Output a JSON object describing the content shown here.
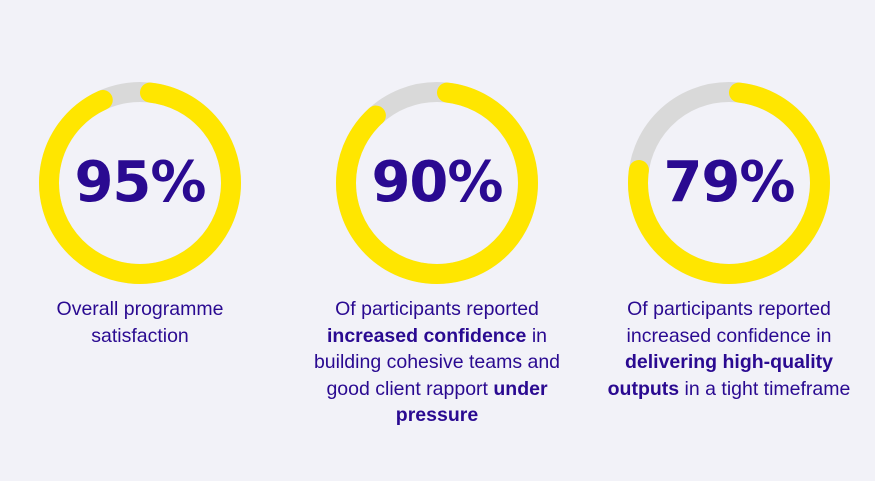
{
  "colors": {
    "fill": "#FFE600",
    "track": "#D9D9D9",
    "text": "#2A0A91",
    "background": "#F2F2F8"
  },
  "chart_data": [
    {
      "type": "pie",
      "variant": "donut",
      "value": 95,
      "max": 100,
      "label": "95%",
      "caption": [
        {
          "text": "Overall programme",
          "bold": false
        },
        {
          "text": " satisfaction",
          "bold": false
        }
      ]
    },
    {
      "type": "pie",
      "variant": "donut",
      "value": 90,
      "max": 100,
      "label": "90%",
      "caption": [
        {
          "text": "Of participants reported ",
          "bold": false
        },
        {
          "text": "increased confidence",
          "bold": true
        },
        {
          "text": " in building cohesive teams and good client rapport ",
          "bold": false
        },
        {
          "text": "under pressure",
          "bold": true
        }
      ]
    },
    {
      "type": "pie",
      "variant": "donut",
      "value": 79,
      "max": 100,
      "label": "79%",
      "caption": [
        {
          "text": "Of participants reported increased confidence in ",
          "bold": false
        },
        {
          "text": "delivering high-quality outputs",
          "bold": true
        },
        {
          "text": " in a tight timeframe",
          "bold": false
        }
      ]
    }
  ]
}
